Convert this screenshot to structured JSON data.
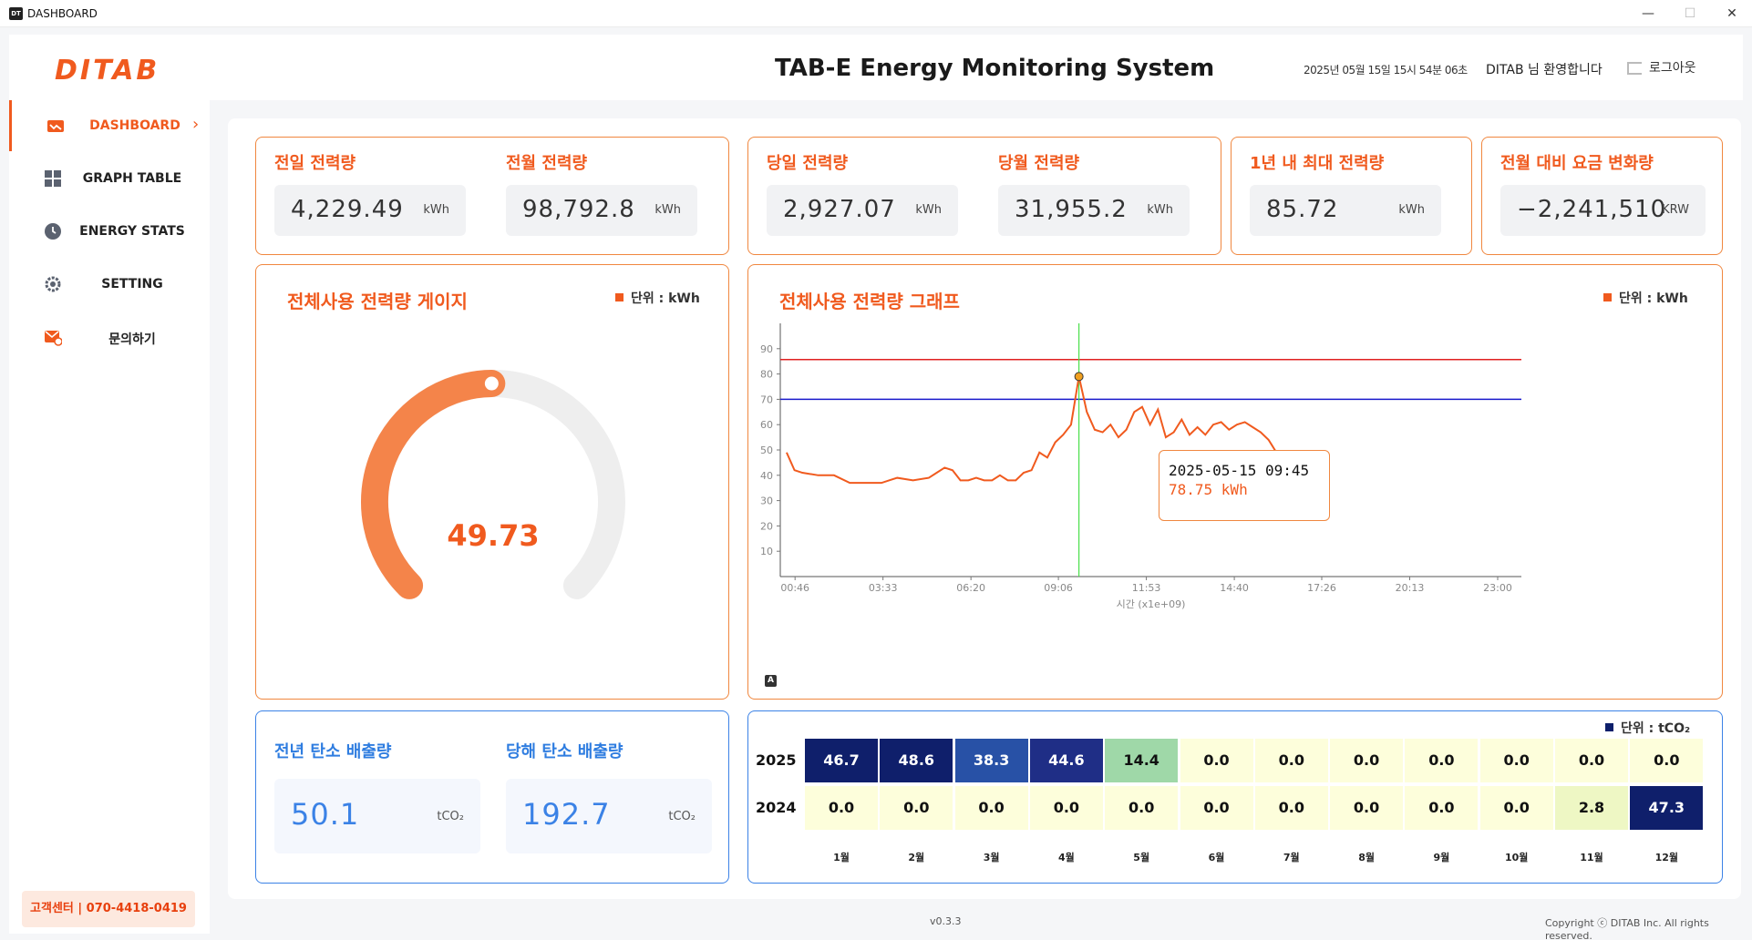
{
  "window": {
    "title": "DASHBOARD",
    "app_icon": "DT",
    "minimize": "—",
    "maximize": "☐",
    "close": "✕"
  },
  "header": {
    "logo": "DITAB",
    "title": "TAB-E Energy Monitoring System",
    "datetime": "2025년 05월 15일 15시 54분 06초",
    "welcome": "DITAB 님 환영합니다",
    "logout": "로그아웃"
  },
  "sidebar": {
    "items": [
      {
        "label": "DASHBOARD",
        "icon": "chart-icon",
        "active": true
      },
      {
        "label": "GRAPH TABLE",
        "icon": "grid-icon",
        "active": false
      },
      {
        "label": "ENERGY STATS",
        "icon": "clock-icon",
        "active": false
      },
      {
        "label": "SETTING",
        "icon": "gear-icon",
        "active": false
      },
      {
        "label": "문의하기",
        "icon": "mail-icon",
        "active": false
      }
    ],
    "support": "고객센터 | 070-4418-0419"
  },
  "kpi": {
    "prev_day": {
      "label": "전일 전력량",
      "value": "4,229.49",
      "unit": "kWh"
    },
    "prev_month": {
      "label": "전월 전력량",
      "value": "98,792.8",
      "unit": "kWh"
    },
    "today": {
      "label": "당일 전력량",
      "value": "2,927.07",
      "unit": "kWh"
    },
    "this_month": {
      "label": "당월 전력량",
      "value": "31,955.2",
      "unit": "kWh"
    },
    "year_max": {
      "label": "1년 내 최대 전력량",
      "value": "85.72",
      "unit": "kWh"
    },
    "fee_change": {
      "label": "전월 대비 요금 변화량",
      "value": "−2,241,510",
      "unit": "KRW"
    }
  },
  "gauge": {
    "title": "전체사용 전력량 게이지",
    "legend": "단위 : kWh",
    "value": "49.73",
    "fraction": 0.4973,
    "color": "#f4844a",
    "track": "#eeeeee"
  },
  "line_chart": {
    "title": "전체사용 전력량 그래프",
    "legend": "단위 : kWh",
    "axis_badge": "A",
    "tooltip_time": "2025-05-15 09:45",
    "tooltip_value": "78.75 kWh"
  },
  "carbon": {
    "prev_year": {
      "label": "전년 탄소 배출량",
      "value": "50.1",
      "unit": "tCO₂"
    },
    "this_year": {
      "label": "당해 탄소 배출량",
      "value": "192.7",
      "unit": "tCO₂"
    }
  },
  "heatmap": {
    "legend": "단위 : tCO₂",
    "months": [
      "1월",
      "2월",
      "3월",
      "4월",
      "5월",
      "6월",
      "7월",
      "8월",
      "9월",
      "10월",
      "11월",
      "12월"
    ],
    "rows": [
      {
        "label": "2025",
        "values": [
          "46.7",
          "48.6",
          "38.3",
          "44.6",
          "14.4",
          "0.0",
          "0.0",
          "0.0",
          "0.0",
          "0.0",
          "0.0",
          "0.0"
        ]
      },
      {
        "label": "2024",
        "values": [
          "0.0",
          "0.0",
          "0.0",
          "0.0",
          "0.0",
          "0.0",
          "0.0",
          "0.0",
          "0.0",
          "0.0",
          "2.8",
          "47.3"
        ]
      }
    ]
  },
  "chart_data": {
    "type": "line",
    "title": "전체사용 전력량 그래프",
    "xlabel": "시간 (x1e+09)",
    "ylabel": "",
    "x_ticks": [
      "00:46",
      "03:33",
      "06:20",
      "09:06",
      "11:53",
      "14:40",
      "17:26",
      "20:13",
      "23:00"
    ],
    "y_ticks": [
      10,
      20,
      30,
      40,
      50,
      60,
      70,
      80,
      90
    ],
    "ylim": [
      0,
      100
    ],
    "xlim_hours": [
      0.3,
      23.75
    ],
    "reference_lines": [
      {
        "value": 85.72,
        "color": "#e02020"
      },
      {
        "value": 70,
        "color": "#1a1acc"
      }
    ],
    "cursor_x_hours": 9.75,
    "series": [
      {
        "color": "#f05a1e",
        "x_hours": [
          0.5,
          0.75,
          1.0,
          1.5,
          2.0,
          2.5,
          3.0,
          3.25,
          3.5,
          3.75,
          4.0,
          4.5,
          5.0,
          5.25,
          5.5,
          5.75,
          6.0,
          6.25,
          6.5,
          6.75,
          7.0,
          7.25,
          7.5,
          7.75,
          8.0,
          8.25,
          8.5,
          8.75,
          9.0,
          9.25,
          9.5,
          9.75,
          10.0,
          10.25,
          10.5,
          10.75,
          11.0,
          11.25,
          11.5,
          11.75,
          12.0,
          12.25,
          12.5,
          12.75,
          13.0,
          13.25,
          13.5,
          13.75,
          14.0,
          14.25,
          14.5,
          14.75,
          15.0,
          15.25,
          15.5,
          15.75,
          16.0
        ],
        "values": [
          49,
          42,
          41,
          40,
          40,
          37,
          37,
          37,
          37,
          38,
          39,
          38,
          39,
          41,
          43,
          42,
          38,
          38,
          39,
          38,
          38,
          40,
          38,
          38,
          41,
          42,
          49,
          47,
          53,
          56,
          60,
          79,
          65,
          58,
          57,
          60,
          55,
          58,
          65,
          67,
          60,
          66,
          55,
          57,
          62,
          56,
          59,
          56,
          60,
          61,
          58,
          60,
          61,
          59,
          57,
          54,
          49
        ]
      }
    ]
  }
}
